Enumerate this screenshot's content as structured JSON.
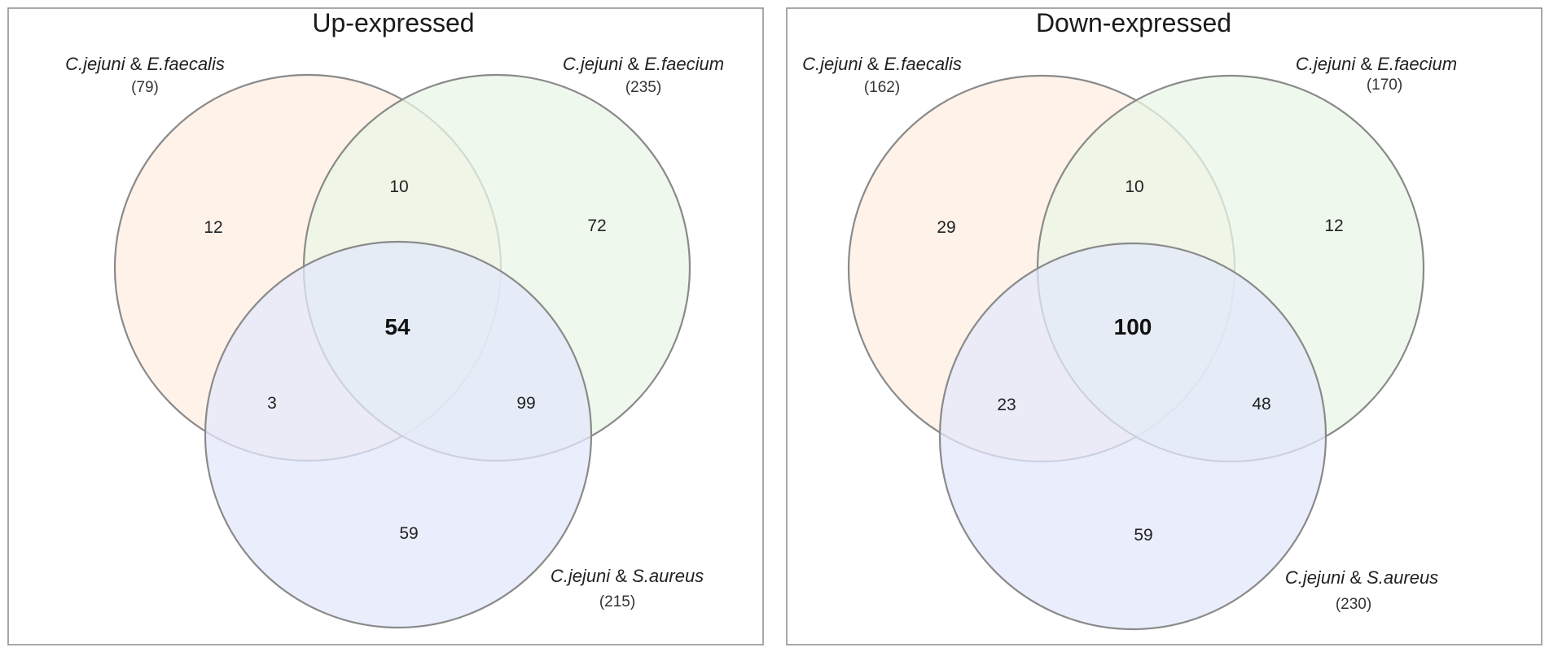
{
  "panels": [
    {
      "title": "Up-expressed",
      "sets": [
        {
          "sp1": "C.jejuni",
          "amp": "&",
          "sp2": "E.faecalis",
          "count": "(79)",
          "color": "#fdeee1"
        },
        {
          "sp1": "C.jejuni",
          "amp": "&",
          "sp2": "E.faecium",
          "count": "(235)",
          "color": "#e9f5e6"
        },
        {
          "sp1": "C.jejuni",
          "amp": "&",
          "sp2": "S.aureus",
          "count": "(215)",
          "color": "#e3e8fb"
        }
      ],
      "regions": {
        "a_only": "12",
        "ab": "10",
        "b_only": "72",
        "abc": "54",
        "ac": "3",
        "bc": "99",
        "c_only": "59"
      }
    },
    {
      "title": "Down-expressed",
      "sets": [
        {
          "sp1": "C.jejuni",
          "amp": "&",
          "sp2": "E.faecalis",
          "count": "(162)",
          "color": "#fdeee1"
        },
        {
          "sp1": "C.jejuni",
          "amp": "&",
          "sp2": "E.faecium",
          "count": "(170)",
          "color": "#e9f5e6"
        },
        {
          "sp1": "C.jejuni",
          "amp": "&",
          "sp2": "S.aureus",
          "count": "(230)",
          "color": "#e3e8fb"
        }
      ],
      "regions": {
        "a_only": "29",
        "ab": "10",
        "b_only": "12",
        "abc": "100",
        "ac": "23",
        "bc": "48",
        "c_only": "59"
      }
    }
  ]
}
